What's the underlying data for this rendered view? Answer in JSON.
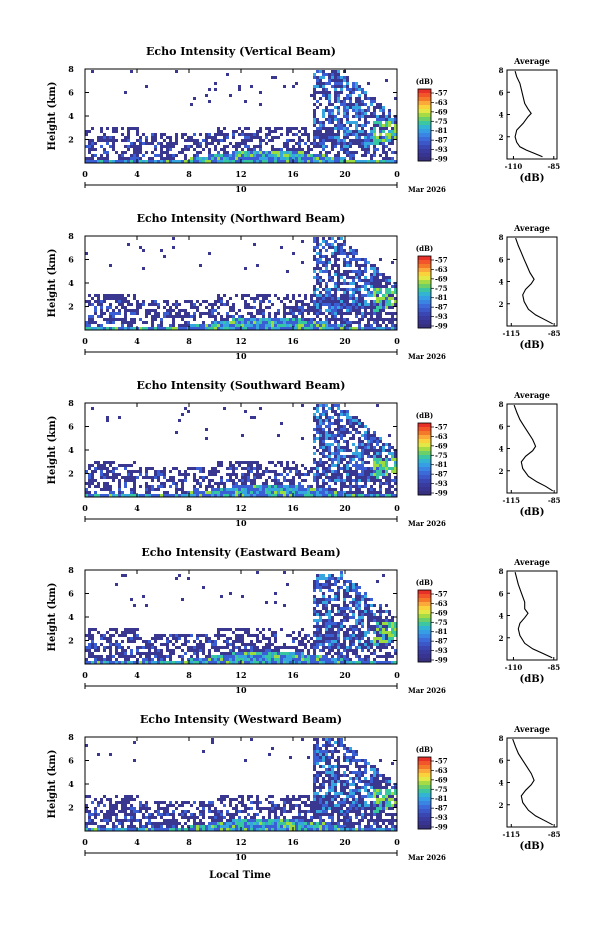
{
  "chart_data": [
    {
      "type": "heatmap",
      "title": "Echo Intensity (Vertical Beam)",
      "ylabel": "Height (km)",
      "xlim": [
        0,
        24
      ],
      "ylim": [
        0,
        8
      ],
      "xticks": [
        "0",
        "4",
        "8",
        "12",
        "16",
        "20",
        "0"
      ],
      "yticks": [
        "2",
        "4",
        "6",
        "8"
      ],
      "day_label": "10",
      "date_label": "Mar 2026",
      "colorbar": {
        "unit": "(dB)",
        "levels": [
          "-57",
          "-63",
          "-69",
          "-75",
          "-81",
          "-87",
          "-93",
          "-99"
        ]
      },
      "profile": {
        "title": "Average",
        "xlabel": "(dB)",
        "xticks": [
          "-110",
          "-85"
        ],
        "xlim": [
          -114,
          -83
        ],
        "yticks": [
          "2",
          "4",
          "6",
          "8"
        ],
        "points": [
          [
            -92,
            0.2
          ],
          [
            -97,
            0.5
          ],
          [
            -102,
            0.8
          ],
          [
            -106,
            1.1
          ],
          [
            -108,
            1.5
          ],
          [
            -109,
            2.0
          ],
          [
            -108,
            2.6
          ],
          [
            -104,
            3.2
          ],
          [
            -101,
            3.8
          ],
          [
            -99,
            4.1
          ],
          [
            -101,
            4.5
          ],
          [
            -103,
            5.0
          ],
          [
            -104,
            5.6
          ],
          [
            -105,
            6.2
          ],
          [
            -106,
            6.8
          ],
          [
            -108,
            7.4
          ],
          [
            -109,
            7.9
          ]
        ]
      }
    },
    {
      "type": "heatmap",
      "title": "Echo Intensity (Northward Beam)",
      "ylabel": "Height (km)",
      "xlim": [
        0,
        24
      ],
      "ylim": [
        0,
        8
      ],
      "xticks": [
        "0",
        "4",
        "8",
        "12",
        "16",
        "20",
        "0"
      ],
      "yticks": [
        "2",
        "4",
        "6",
        "8"
      ],
      "day_label": "10",
      "date_label": "Mar 2026",
      "colorbar": {
        "unit": "(dB)",
        "levels": [
          "-57",
          "-63",
          "-69",
          "-75",
          "-81",
          "-87",
          "-93",
          "-99"
        ]
      },
      "profile": {
        "title": "Average",
        "xlabel": "(dB)",
        "xticks": [
          "-115",
          "-85"
        ],
        "xlim": [
          -118,
          -83
        ],
        "yticks": [
          "2",
          "4",
          "6",
          "8"
        ],
        "points": [
          [
            -86,
            0.2
          ],
          [
            -92,
            0.6
          ],
          [
            -98,
            1.0
          ],
          [
            -103,
            1.5
          ],
          [
            -106,
            2.2
          ],
          [
            -107,
            2.8
          ],
          [
            -105,
            3.3
          ],
          [
            -101,
            3.8
          ],
          [
            -99,
            4.2
          ],
          [
            -102,
            4.8
          ],
          [
            -104,
            5.4
          ],
          [
            -106,
            6.0
          ],
          [
            -108,
            6.6
          ],
          [
            -110,
            7.2
          ],
          [
            -112,
            7.9
          ]
        ]
      }
    },
    {
      "type": "heatmap",
      "title": "Echo Intensity (Southward Beam)",
      "ylabel": "Height (km)",
      "xlim": [
        0,
        24
      ],
      "ylim": [
        0,
        8
      ],
      "xticks": [
        "0",
        "4",
        "8",
        "12",
        "16",
        "20",
        "0"
      ],
      "yticks": [
        "2",
        "4",
        "6",
        "8"
      ],
      "day_label": "10",
      "date_label": "Mar 2026",
      "colorbar": {
        "unit": "(dB)",
        "levels": [
          "-57",
          "-63",
          "-69",
          "-75",
          "-81",
          "-87",
          "-93",
          "-99"
        ]
      },
      "profile": {
        "title": "Average",
        "xlabel": "(dB)",
        "xticks": [
          "-115",
          "-85"
        ],
        "xlim": [
          -118,
          -83
        ],
        "yticks": [
          "2",
          "4",
          "6",
          "8"
        ],
        "points": [
          [
            -86,
            0.2
          ],
          [
            -91,
            0.6
          ],
          [
            -97,
            1.0
          ],
          [
            -103,
            1.5
          ],
          [
            -107,
            2.2
          ],
          [
            -108,
            2.8
          ],
          [
            -105,
            3.3
          ],
          [
            -100,
            3.8
          ],
          [
            -98,
            4.2
          ],
          [
            -100,
            4.8
          ],
          [
            -103,
            5.4
          ],
          [
            -106,
            6.0
          ],
          [
            -109,
            6.6
          ],
          [
            -111,
            7.2
          ],
          [
            -113,
            7.9
          ]
        ]
      }
    },
    {
      "type": "heatmap",
      "title": "Echo Intensity (Eastward Beam)",
      "ylabel": "Height (km)",
      "xlim": [
        0,
        24
      ],
      "ylim": [
        0,
        8
      ],
      "xticks": [
        "0",
        "4",
        "8",
        "12",
        "16",
        "20",
        "0"
      ],
      "yticks": [
        "2",
        "4",
        "6",
        "8"
      ],
      "day_label": "10",
      "date_label": "Mar 2026",
      "colorbar": {
        "unit": "(dB)",
        "levels": [
          "-57",
          "-63",
          "-69",
          "-75",
          "-81",
          "-87",
          "-93",
          "-99"
        ]
      },
      "profile": {
        "title": "Average",
        "xlabel": "(dB)",
        "xticks": [
          "-110",
          "-85"
        ],
        "xlim": [
          -114,
          -83
        ],
        "yticks": [
          "2",
          "4",
          "6",
          "8"
        ],
        "points": [
          [
            -86,
            0.2
          ],
          [
            -92,
            0.6
          ],
          [
            -98,
            1.0
          ],
          [
            -103,
            1.5
          ],
          [
            -106,
            2.2
          ],
          [
            -107,
            2.8
          ],
          [
            -106,
            3.3
          ],
          [
            -103,
            3.8
          ],
          [
            -101,
            4.2
          ],
          [
            -103,
            4.6
          ],
          [
            -103,
            5.2
          ],
          [
            -105,
            6.0
          ],
          [
            -107,
            6.8
          ],
          [
            -109,
            7.9
          ]
        ]
      }
    },
    {
      "type": "heatmap",
      "title": "Echo Intensity (Westward Beam)",
      "ylabel": "Height (km)",
      "xlim": [
        0,
        24
      ],
      "ylim": [
        0,
        8
      ],
      "xticks": [
        "0",
        "4",
        "8",
        "12",
        "16",
        "20",
        "0"
      ],
      "yticks": [
        "2",
        "4",
        "6",
        "8"
      ],
      "day_label": "10",
      "date_label": "Mar 2026",
      "colorbar": {
        "unit": "(dB)",
        "levels": [
          "-57",
          "-63",
          "-69",
          "-75",
          "-81",
          "-87",
          "-93",
          "-99"
        ]
      },
      "profile": {
        "title": "Average",
        "xlabel": "(dB)",
        "xticks": [
          "-115",
          "-85"
        ],
        "xlim": [
          -118,
          -83
        ],
        "yticks": [
          "2",
          "4",
          "6",
          "8"
        ],
        "points": [
          [
            -86,
            0.2
          ],
          [
            -92,
            0.6
          ],
          [
            -98,
            1.0
          ],
          [
            -103,
            1.5
          ],
          [
            -107,
            2.2
          ],
          [
            -108,
            2.8
          ],
          [
            -105,
            3.3
          ],
          [
            -101,
            3.8
          ],
          [
            -99,
            4.2
          ],
          [
            -101,
            4.8
          ],
          [
            -104,
            5.4
          ],
          [
            -107,
            6.0
          ],
          [
            -110,
            6.6
          ],
          [
            -112,
            7.2
          ],
          [
            -114,
            7.9
          ]
        ]
      }
    }
  ],
  "footer": {
    "xlabel": "Local Time"
  },
  "palette": [
    "#e73028",
    "#f46d25",
    "#fdae3c",
    "#f5e53b",
    "#9ddc3f",
    "#36c7a0",
    "#35a6e0",
    "#3a5ed4",
    "#39378f"
  ]
}
